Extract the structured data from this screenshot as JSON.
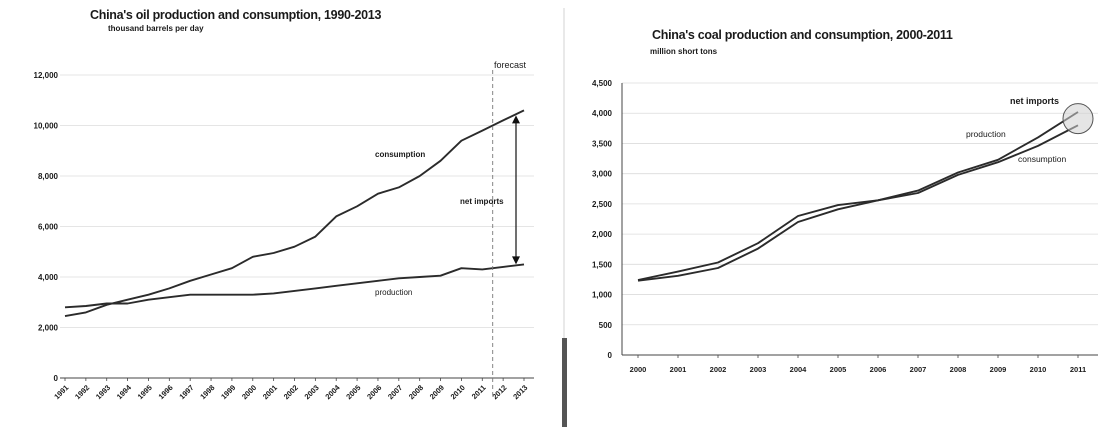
{
  "chart_data": [
    {
      "type": "line",
      "title": "China's oil production and consumption, 1990-2013",
      "subtitle": "thousand barrels per day",
      "ylim": [
        0,
        12000
      ],
      "yticks": [
        "0",
        "2,000",
        "4,000",
        "6,000",
        "8,000",
        "10,000",
        "12,000"
      ],
      "ytick_values": [
        0,
        2000,
        4000,
        6000,
        8000,
        10000,
        12000
      ],
      "categories": [
        "1991",
        "1992",
        "1993",
        "1994",
        "1995",
        "1996",
        "1997",
        "1998",
        "1999",
        "2000",
        "2001",
        "2002",
        "2003",
        "2004",
        "2005",
        "2006",
        "2007",
        "2008",
        "2009",
        "2010",
        "2011",
        "2012",
        "2013"
      ],
      "series": [
        {
          "name": "consumption",
          "values": [
            2450,
            2600,
            2900,
            3100,
            3300,
            3550,
            3850,
            4100,
            4350,
            4800,
            4950,
            5200,
            5600,
            6400,
            6800,
            7300,
            7550,
            8000,
            8600,
            9400,
            9800,
            10200,
            10600
          ]
        },
        {
          "name": "production",
          "values": [
            2800,
            2850,
            2950,
            2950,
            3100,
            3200,
            3300,
            3300,
            3300,
            3300,
            3350,
            3450,
            3550,
            3650,
            3750,
            3850,
            3950,
            4000,
            4050,
            4350,
            4300,
            4400,
            4500
          ]
        }
      ],
      "annotations": {
        "net_imports": "net imports",
        "forecast": "forecast"
      },
      "grid": true
    },
    {
      "type": "line",
      "title": "China's coal production and consumption, 2000-2011",
      "subtitle": "million short tons",
      "ylim": [
        0,
        4500
      ],
      "yticks": [
        "0",
        "500",
        "1,000",
        "1,500",
        "2,000",
        "2,500",
        "3,000",
        "3,500",
        "4,000",
        "4,500"
      ],
      "ytick_values": [
        0,
        500,
        1000,
        1500,
        2000,
        2500,
        3000,
        3500,
        4000,
        4500
      ],
      "categories": [
        "2000",
        "2001",
        "2002",
        "2003",
        "2004",
        "2005",
        "2006",
        "2007",
        "2008",
        "2009",
        "2010",
        "2011"
      ],
      "series": [
        {
          "name": "production",
          "values": [
            1240,
            1380,
            1530,
            1850,
            2300,
            2480,
            2560,
            2720,
            3020,
            3230,
            3600,
            4020
          ]
        },
        {
          "name": "consumption",
          "values": [
            1230,
            1310,
            1440,
            1760,
            2200,
            2410,
            2560,
            2680,
            2980,
            3190,
            3460,
            3800
          ]
        }
      ],
      "annotations": {
        "net_imports": "net imports"
      },
      "grid": true
    }
  ]
}
